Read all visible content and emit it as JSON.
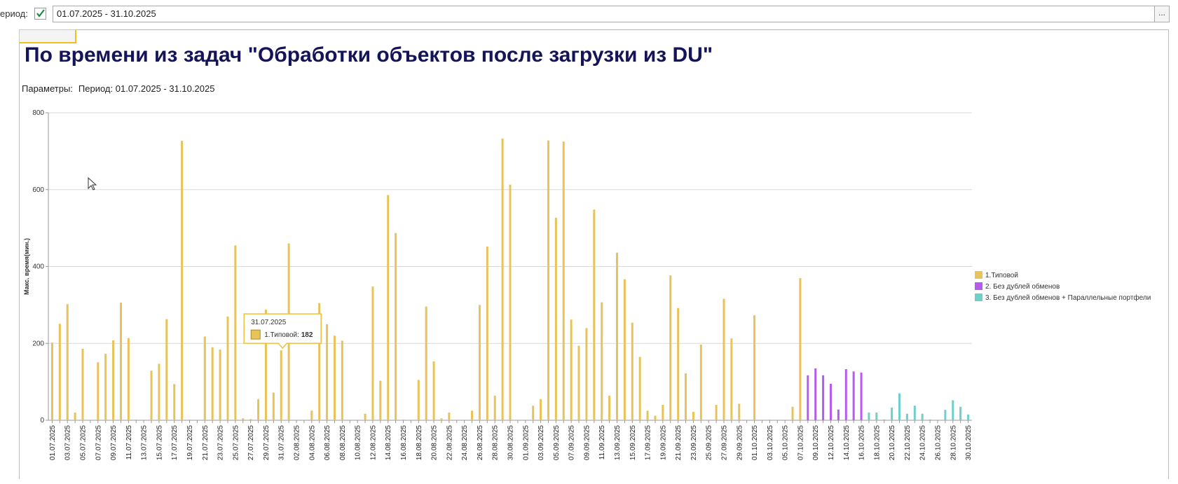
{
  "toolbar": {
    "period_label": "ериод:",
    "period_value": "01.07.2025 - 31.10.2025",
    "picker_button": "..."
  },
  "report": {
    "title": "По времени из задач \"Обработки объектов после загрузки из DU\"",
    "params_label": "Параметры:",
    "params_value": "Период: 01.07.2025 - 31.10.2025"
  },
  "chart_data": {
    "type": "bar",
    "ylabel": "Макс. время(мин.)",
    "ylim": [
      0,
      800
    ],
    "yticks": [
      0,
      200,
      400,
      600,
      800
    ],
    "grid": true,
    "legend": "right",
    "categories": [
      "01.07.2025",
      null,
      "03.07.2025",
      null,
      "05.07.2025",
      null,
      "07.07.2025",
      null,
      "09.07.2025",
      null,
      "11.07.2025",
      null,
      "13.07.2025",
      null,
      "15.07.2025",
      null,
      "17.07.2025",
      null,
      "19.07.2025",
      null,
      "21.07.2025",
      null,
      "23.07.2025",
      null,
      "25.07.2025",
      null,
      "27.07.2025",
      null,
      "29.07.2025",
      null,
      "31.07.2025",
      null,
      "02.08.2025",
      null,
      "04.08.2025",
      null,
      "06.08.2025",
      null,
      "08.08.2025",
      null,
      "10.08.2025",
      null,
      "12.08.2025",
      null,
      "14.08.2025",
      null,
      "16.08.2025",
      null,
      "18.08.2025",
      null,
      "20.08.2025",
      null,
      "22.08.2025",
      null,
      "24.08.2025",
      null,
      "26.08.2025",
      null,
      "28.08.2025",
      null,
      "30.08.2025",
      null,
      "01.09.2025",
      null,
      "03.09.2025",
      null,
      "05.09.2025",
      null,
      "07.09.2025",
      null,
      "09.09.2025",
      null,
      "11.09.2025",
      null,
      "13.09.2025",
      null,
      "15.09.2025",
      null,
      "17.09.2025",
      null,
      "19.09.2025",
      null,
      "21.09.2025",
      null,
      "23.09.2025",
      null,
      "25.09.2025",
      null,
      "27.09.2025",
      null,
      "29.09.2025",
      null,
      "01.10.2025",
      null,
      "03.10.2025",
      null,
      "05.10.2025",
      null,
      "07.10.2025",
      null,
      "09.10.2025",
      null,
      "12.10.2025",
      null,
      "14.10.2025",
      null,
      "16.10.2025",
      null,
      "18.10.2025",
      null,
      "20.10.2025",
      null,
      "22.10.2025",
      null,
      "24.10.2025",
      null,
      "26.10.2025",
      null,
      "28.10.2025",
      null,
      "30.10.2025"
    ],
    "series": [
      {
        "name": "1.Типовой",
        "color": "#e8c35a",
        "values": [
          202,
          251,
          302,
          20,
          186,
          0,
          151,
          173,
          208,
          306,
          214,
          2,
          0,
          129,
          147,
          263,
          94,
          727,
          2,
          0,
          218,
          190,
          184,
          270,
          455,
          5,
          3,
          55,
          288,
          72,
          182,
          460,
          0,
          0,
          25,
          305,
          250,
          220,
          207,
          0,
          0,
          17,
          348,
          103,
          586,
          487,
          2,
          0,
          105,
          296,
          153,
          5,
          20,
          0,
          0,
          25,
          300,
          452,
          64,
          733,
          613,
          0,
          0,
          38,
          55,
          728,
          527,
          725,
          262,
          194,
          240,
          548,
          307,
          64,
          436,
          367,
          254,
          165,
          25,
          12,
          40,
          377,
          292,
          122,
          22,
          197,
          0,
          40,
          316,
          213,
          43,
          0,
          273,
          0,
          2,
          0,
          0,
          35,
          370,
          null,
          null,
          null,
          null,
          null,
          null,
          null,
          null,
          null,
          null,
          null,
          null,
          null,
          null,
          null,
          null,
          null,
          null,
          null,
          null,
          null,
          null
        ]
      },
      {
        "name": "2. Без дублей обменов",
        "color": "#b75af0",
        "values": [
          null,
          null,
          null,
          null,
          null,
          null,
          null,
          null,
          null,
          null,
          null,
          null,
          null,
          null,
          null,
          null,
          null,
          null,
          null,
          null,
          null,
          null,
          null,
          null,
          null,
          null,
          null,
          null,
          null,
          null,
          null,
          null,
          null,
          null,
          null,
          null,
          null,
          null,
          null,
          null,
          null,
          null,
          null,
          null,
          null,
          null,
          null,
          null,
          null,
          null,
          null,
          null,
          null,
          null,
          null,
          null,
          null,
          null,
          null,
          null,
          null,
          null,
          null,
          null,
          null,
          null,
          null,
          null,
          null,
          null,
          null,
          null,
          null,
          null,
          null,
          null,
          null,
          null,
          null,
          null,
          null,
          null,
          null,
          null,
          null,
          null,
          null,
          null,
          null,
          null,
          null,
          null,
          null,
          null,
          null,
          null,
          null,
          null,
          null,
          117,
          135,
          117,
          95,
          28,
          133,
          127,
          124,
          null,
          null,
          null,
          null,
          null,
          null,
          null,
          null,
          null,
          null,
          null,
          null,
          null,
          null
        ]
      },
      {
        "name": "3. Без дублей обменов + Параллельные портфели",
        "color": "#6fcfc9",
        "values": [
          null,
          null,
          null,
          null,
          null,
          null,
          null,
          null,
          null,
          null,
          null,
          null,
          null,
          null,
          null,
          null,
          null,
          null,
          null,
          null,
          null,
          null,
          null,
          null,
          null,
          null,
          null,
          null,
          null,
          null,
          null,
          null,
          null,
          null,
          null,
          null,
          null,
          null,
          null,
          null,
          null,
          null,
          null,
          null,
          null,
          null,
          null,
          null,
          null,
          null,
          null,
          null,
          null,
          null,
          null,
          null,
          null,
          null,
          null,
          null,
          null,
          null,
          null,
          null,
          null,
          null,
          null,
          null,
          null,
          null,
          null,
          null,
          null,
          null,
          null,
          null,
          null,
          null,
          null,
          null,
          null,
          null,
          null,
          null,
          null,
          null,
          null,
          null,
          null,
          null,
          null,
          null,
          null,
          null,
          null,
          null,
          null,
          null,
          null,
          null,
          null,
          null,
          null,
          null,
          null,
          null,
          null,
          20,
          20,
          2,
          33,
          70,
          17,
          38,
          17,
          2,
          0,
          27,
          52,
          35,
          15
        ]
      }
    ],
    "tooltip": {
      "category_index": 30,
      "series_index": 0
    }
  }
}
